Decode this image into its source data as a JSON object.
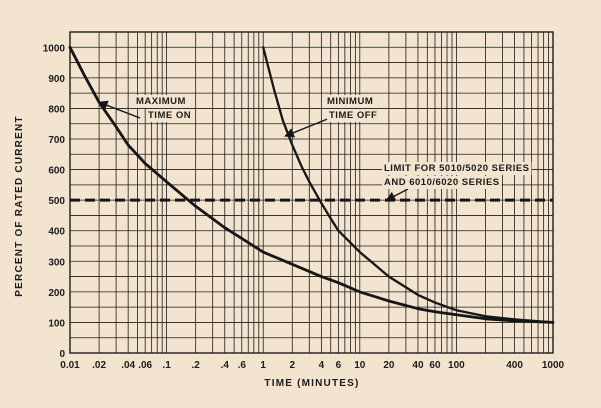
{
  "chart_data": {
    "type": "line",
    "title": "",
    "xlabel": "TIME (MINUTES)",
    "ylabel": "PERCENT OF RATED CURRENT",
    "x_scale": "log",
    "xlim": [
      0.01,
      1000
    ],
    "ylim": [
      0,
      1050
    ],
    "grid": true,
    "x_ticks": [
      "0.01",
      ".02",
      ".04",
      ".06",
      ".1",
      ".2",
      ".4",
      ".6",
      "1",
      "2",
      "4",
      "6",
      "10",
      "20",
      "40",
      "60",
      "100",
      "400",
      "1000"
    ],
    "y_ticks": [
      "0",
      "100",
      "200",
      "300",
      "400",
      "500",
      "600",
      "700",
      "800",
      "900",
      "1000"
    ],
    "series": [
      {
        "name": "MAXIMUM TIME ON",
        "style": "solid",
        "x": [
          0.01,
          0.014,
          0.02,
          0.03,
          0.04,
          0.06,
          0.1,
          0.2,
          0.4,
          1,
          2,
          4,
          6,
          10,
          20,
          40,
          60,
          100,
          200,
          400,
          1000
        ],
        "y": [
          1000,
          910,
          820,
          740,
          680,
          620,
          560,
          480,
          410,
          330,
          290,
          250,
          230,
          200,
          170,
          145,
          135,
          125,
          112,
          105,
          100
        ]
      },
      {
        "name": "MINIMUM TIME OFF",
        "style": "solid",
        "x": [
          1,
          1.3,
          1.6,
          2,
          2.5,
          3,
          4,
          5,
          6,
          10,
          20,
          40,
          60,
          100,
          200,
          400,
          1000
        ],
        "y": [
          1000,
          860,
          760,
          680,
          610,
          560,
          490,
          440,
          400,
          330,
          250,
          190,
          165,
          140,
          120,
          110,
          100
        ]
      },
      {
        "name": "LIMIT FOR 5010/5020 SERIES AND 6010/6020 SERIES",
        "style": "dashed",
        "x": [
          0.01,
          1000
        ],
        "y": [
          500,
          500
        ]
      }
    ],
    "annotations": [
      {
        "lines": [
          "MAXIMUM",
          "TIME ON"
        ]
      },
      {
        "lines": [
          "MINIMUM",
          "TIME OFF"
        ]
      },
      {
        "lines": [
          "LIMIT FOR 5010/5020 SERIES",
          "AND 6010/6020 SERIES"
        ]
      }
    ]
  }
}
